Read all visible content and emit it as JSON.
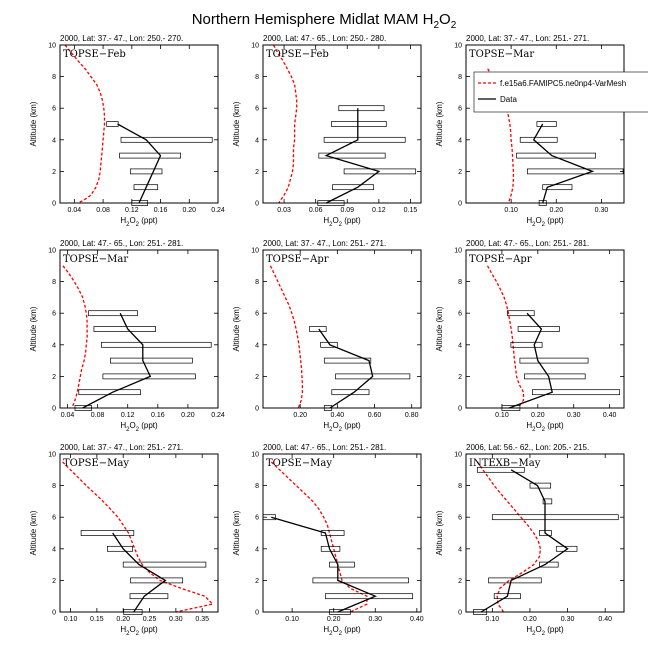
{
  "chart_data": {
    "type": "line",
    "title": "Northern Hemisphere Midlat MAM H2O2",
    "title_main": "Northern Hemisphere Midlat MAM H",
    "title_sub": "2",
    "title_tail": "O",
    "title_sub2": "2",
    "ylabel": "Altitude (km)",
    "xlabel_parts": [
      "H",
      "2",
      "O",
      "2",
      " (ppt)"
    ],
    "legend": {
      "model": "f.e15a6.FAMIPC5.ne0np4-VarMesh",
      "obs": "Data"
    },
    "colors": {
      "model": "#ff0000",
      "obs": "#000000",
      "box": "#000000"
    },
    "panels": [
      {
        "header": "2000, Lat: 37.- 47., Lon: 250.- 270.",
        "tag": "TOPSE−Feb",
        "xlim": [
          0.02,
          0.24
        ],
        "ylim": [
          0,
          10
        ],
        "xticks": [
          0.04,
          0.08,
          0.12,
          0.16,
          0.2,
          0.24
        ],
        "xticklabels": [
          "0.04",
          "0.08",
          "0.12",
          "0.16",
          "0.20",
          "0.24"
        ],
        "yticks": [
          0,
          2,
          4,
          6,
          8,
          10
        ],
        "model_alt": [
          10,
          9.5,
          9,
          8.5,
          8,
          7.5,
          7,
          6.5,
          6,
          5.5,
          5,
          4.5,
          4,
          3.5,
          3,
          2.5,
          2,
          1.5,
          1,
          0.5,
          0.2,
          0
        ],
        "model_x": [
          0.027,
          0.036,
          0.045,
          0.055,
          0.063,
          0.071,
          0.076,
          0.079,
          0.081,
          0.082,
          0.082,
          0.081,
          0.08,
          0.079,
          0.078,
          0.077,
          0.076,
          0.074,
          0.07,
          0.063,
          0.054,
          0.045
        ],
        "obs_alt": [
          5,
          4,
          3,
          2,
          1,
          0
        ],
        "obs_x": [
          0.1,
          0.14,
          0.16,
          0.15,
          0.14,
          0.13
        ],
        "obs_lo": [
          0.085,
          0.105,
          0.103,
          0.118,
          0.123,
          0.12
        ],
        "obs_hi": [
          0.101,
          0.232,
          0.188,
          0.162,
          0.156,
          0.142
        ]
      },
      {
        "header": "2000, Lat: 47.- 65., Lon: 250.- 280.",
        "tag": "TOPSE−Feb",
        "xlim": [
          0.01,
          0.16
        ],
        "ylim": [
          0,
          10
        ],
        "xticks": [
          0.03,
          0.06,
          0.09,
          0.12,
          0.15
        ],
        "xticklabels": [
          "0.03",
          "0.06",
          "0.09",
          "0.12",
          "0.15"
        ],
        "yticks": [
          0,
          2,
          4,
          6,
          8,
          10
        ],
        "model_alt": [
          10,
          9.5,
          9,
          8.5,
          8,
          7.5,
          7,
          6.5,
          6,
          5.5,
          5,
          4.5,
          4,
          3.5,
          3,
          2.5,
          2,
          1.5,
          1,
          0.5,
          0.2,
          0
        ],
        "model_x": [
          0.02,
          0.024,
          0.029,
          0.033,
          0.037,
          0.04,
          0.041,
          0.042,
          0.042,
          0.041,
          0.04,
          0.04,
          0.04,
          0.039,
          0.039,
          0.039,
          0.038,
          0.036,
          0.034,
          0.03,
          0.027,
          0.025
        ],
        "obs_alt": [
          6,
          5,
          4,
          3,
          2,
          1,
          0
        ],
        "obs_x": [
          0.1,
          0.1,
          0.1,
          0.07,
          0.12,
          0.1,
          0.07
        ],
        "obs_lo": [
          0.082,
          0.075,
          0.068,
          0.063,
          0.087,
          0.076,
          0.062
        ],
        "obs_hi": [
          0.125,
          0.127,
          0.145,
          0.126,
          0.155,
          0.115,
          0.087
        ]
      },
      {
        "header": "2000, Lat: 37.- 47., Lon: 251.- 271.",
        "tag": "TOPSE−Mar",
        "xlim": [
          0.0,
          0.35
        ],
        "ylim": [
          0,
          10
        ],
        "xticks": [
          0.1,
          0.2,
          0.3
        ],
        "xticklabels": [
          "0.10",
          "0.20",
          "0.30"
        ],
        "yticks": [
          0,
          2,
          4,
          6,
          8,
          10
        ],
        "model_alt": [
          8.5,
          8,
          7.5,
          7,
          6.5,
          6,
          5.5,
          5,
          4.5,
          4,
          3.5,
          3,
          2.5,
          2,
          1.5,
          1,
          0.5,
          0
        ],
        "model_x": [
          0.048,
          0.058,
          0.068,
          0.076,
          0.083,
          0.09,
          0.094,
          0.097,
          0.099,
          0.1,
          0.102,
          0.103,
          0.104,
          0.105,
          0.105,
          0.104,
          0.1,
          0.094
        ],
        "obs_alt": [
          5,
          4,
          3,
          2,
          1,
          0
        ],
        "obs_x": [
          0.17,
          0.15,
          0.19,
          0.28,
          0.18,
          0.17
        ],
        "obs_lo": [
          0.157,
          0.12,
          0.112,
          0.136,
          0.17,
          0.162
        ],
        "obs_hi": [
          0.2,
          0.202,
          0.287,
          0.348,
          0.235,
          0.178
        ]
      },
      {
        "header": "2000, Lat: 47.- 65., Lon: 251.- 281.",
        "tag": "TOPSE−Mar",
        "xlim": [
          0.03,
          0.24
        ],
        "ylim": [
          0,
          10
        ],
        "xticks": [
          0.04,
          0.08,
          0.12,
          0.16,
          0.2,
          0.24
        ],
        "xticklabels": [
          "0.04",
          "0.08",
          "0.12",
          "0.16",
          "0.20",
          "0.24"
        ],
        "yticks": [
          0,
          2,
          4,
          6,
          8,
          10
        ],
        "model_alt": [
          9,
          8.5,
          8,
          7.5,
          7,
          6.5,
          6,
          5.5,
          5,
          4.5,
          4,
          3.5,
          3,
          2.5,
          2,
          1.5,
          1,
          0.5,
          0
        ],
        "model_x": [
          0.034,
          0.042,
          0.049,
          0.055,
          0.06,
          0.063,
          0.065,
          0.066,
          0.066,
          0.066,
          0.065,
          0.064,
          0.062,
          0.059,
          0.057,
          0.055,
          0.053,
          0.05,
          0.046
        ],
        "obs_alt": [
          6,
          5,
          4,
          3,
          2,
          1,
          0
        ],
        "obs_x": [
          0.11,
          0.12,
          0.14,
          0.14,
          0.15,
          0.1,
          0.06
        ],
        "obs_lo": [
          0.068,
          0.075,
          0.085,
          0.097,
          0.087,
          0.055,
          0.05
        ],
        "obs_hi": [
          0.133,
          0.157,
          0.231,
          0.206,
          0.21,
          0.137,
          0.072
        ]
      },
      {
        "header": "2000, Lat: 37.- 47., Lon: 251.- 271.",
        "tag": "TOPSE−Apr",
        "xlim": [
          0.0,
          0.85
        ],
        "ylim": [
          0,
          10
        ],
        "xticks": [
          0.2,
          0.4,
          0.6,
          0.8
        ],
        "xticklabels": [
          "0.20",
          "0.40",
          "0.60",
          "0.80"
        ],
        "yticks": [
          0,
          2,
          4,
          6,
          8,
          10
        ],
        "model_alt": [
          9,
          8.5,
          8,
          7.5,
          7,
          6.5,
          6,
          5.5,
          5,
          4.5,
          4,
          3.5,
          3,
          2.5,
          2,
          1.5,
          1,
          0.5,
          0
        ],
        "model_x": [
          0.04,
          0.06,
          0.08,
          0.1,
          0.12,
          0.14,
          0.155,
          0.168,
          0.178,
          0.186,
          0.193,
          0.198,
          0.203,
          0.207,
          0.21,
          0.212,
          0.212,
          0.206,
          0.19
        ],
        "obs_alt": [
          5,
          4,
          3,
          2,
          1,
          0
        ],
        "obs_x": [
          0.3,
          0.36,
          0.57,
          0.59,
          0.49,
          0.36
        ],
        "obs_lo": [
          0.25,
          0.31,
          0.33,
          0.39,
          0.37,
          0.33
        ],
        "obs_hi": [
          0.34,
          0.4,
          0.58,
          0.79,
          0.57,
          0.37
        ]
      },
      {
        "header": "2000, Lat: 47.- 65., Lon: 251.- 281.",
        "tag": "TOPSE−Apr",
        "xlim": [
          0.0,
          0.44
        ],
        "ylim": [
          0,
          10
        ],
        "xticks": [
          0.1,
          0.2,
          0.3,
          0.4
        ],
        "xticklabels": [
          "0.10",
          "0.20",
          "0.30",
          "0.40"
        ],
        "yticks": [
          0,
          2,
          4,
          6,
          8,
          10
        ],
        "model_alt": [
          9,
          8.5,
          8,
          7.5,
          7,
          6.5,
          6,
          5.5,
          5,
          4.5,
          4,
          3.5,
          3,
          2.5,
          2,
          1.5,
          1,
          0.5,
          0
        ],
        "model_x": [
          0.06,
          0.072,
          0.085,
          0.096,
          0.106,
          0.113,
          0.118,
          0.122,
          0.126,
          0.129,
          0.131,
          0.133,
          0.135,
          0.138,
          0.141,
          0.148,
          0.16,
          0.16,
          0.145
        ],
        "obs_alt": [
          6,
          5,
          4,
          3,
          2,
          1,
          0
        ],
        "obs_x": [
          0.17,
          0.21,
          0.19,
          0.2,
          0.23,
          0.24,
          0.12
        ],
        "obs_lo": [
          0.115,
          0.145,
          0.125,
          0.15,
          0.163,
          0.185,
          0.1
        ],
        "obs_hi": [
          0.19,
          0.26,
          0.212,
          0.34,
          0.332,
          0.428,
          0.15
        ]
      },
      {
        "header": "2000, Lat: 37.- 47., Lon: 251.- 271.",
        "tag": "TOPSE−May",
        "xlim": [
          0.08,
          0.38
        ],
        "ylim": [
          0,
          10
        ],
        "xticks": [
          0.1,
          0.15,
          0.2,
          0.25,
          0.3,
          0.35
        ],
        "xticklabels": [
          "0.10",
          "0.15",
          "0.20",
          "0.25",
          "0.30",
          "0.35"
        ],
        "yticks": [
          0,
          2,
          4,
          6,
          8,
          10
        ],
        "model_alt": [
          9.5,
          9,
          8.5,
          8,
          7.5,
          7,
          6.5,
          6,
          5.5,
          5,
          4.5,
          4,
          3.5,
          3,
          2.5,
          2,
          1.5,
          1,
          0.5,
          0
        ],
        "model_x": [
          0.085,
          0.1,
          0.115,
          0.13,
          0.146,
          0.162,
          0.176,
          0.19,
          0.2,
          0.21,
          0.216,
          0.222,
          0.228,
          0.236,
          0.25,
          0.27,
          0.31,
          0.355,
          0.37,
          0.3
        ],
        "obs_alt": [
          5,
          4,
          3,
          2,
          1,
          0
        ],
        "obs_x": [
          0.18,
          0.2,
          0.23,
          0.28,
          0.24,
          0.22
        ],
        "obs_lo": [
          0.12,
          0.17,
          0.2,
          0.214,
          0.213,
          0.201
        ],
        "obs_hi": [
          0.22,
          0.218,
          0.357,
          0.313,
          0.285,
          0.236
        ]
      },
      {
        "header": "2000, Lat: 47.- 65., Lon: 251.- 281.",
        "tag": "TOPSE−May",
        "xlim": [
          0.03,
          0.41
        ],
        "ylim": [
          0,
          10
        ],
        "xticks": [
          0.1,
          0.2,
          0.3,
          0.4
        ],
        "xticklabels": [
          "0.10",
          "0.20",
          "0.30",
          "0.40"
        ],
        "yticks": [
          0,
          2,
          4,
          6,
          8,
          10
        ],
        "model_alt": [
          9.5,
          9,
          8.5,
          8,
          7.5,
          7,
          6.5,
          6,
          5.5,
          5,
          4.5,
          4,
          3.5,
          3,
          2.5,
          2,
          1.5,
          1,
          0.5,
          0
        ],
        "model_x": [
          0.05,
          0.07,
          0.09,
          0.11,
          0.13,
          0.15,
          0.165,
          0.176,
          0.185,
          0.19,
          0.195,
          0.2,
          0.205,
          0.21,
          0.215,
          0.22,
          0.24,
          0.28,
          0.28,
          0.24
        ],
        "obs_alt": [
          6,
          5,
          4,
          3,
          2,
          1,
          0
        ],
        "obs_x": [
          0.05,
          0.18,
          0.19,
          0.21,
          0.21,
          0.3,
          0.21
        ],
        "obs_lo": [
          0.03,
          0.17,
          0.17,
          0.19,
          0.15,
          0.18,
          0.19
        ],
        "obs_hi": [
          0.06,
          0.225,
          0.215,
          0.25,
          0.38,
          0.39,
          0.24
        ]
      },
      {
        "header": "2006, Lat: 56.- 62., Lon: 205.- 215.",
        "tag": "INTEXB−May",
        "xlim": [
          0.03,
          0.45
        ],
        "ylim": [
          0,
          10
        ],
        "xticks": [
          0.1,
          0.2,
          0.3,
          0.4
        ],
        "xticklabels": [
          "0.10",
          "0.20",
          "0.30",
          "0.40"
        ],
        "yticks": [
          0,
          2,
          4,
          6,
          8,
          10
        ],
        "model_alt": [
          9.5,
          9,
          8.5,
          8,
          7.5,
          7,
          6.5,
          6,
          5.5,
          5,
          4.5,
          4,
          3.5,
          3,
          2.5,
          2,
          1.5,
          1,
          0.5,
          0
        ],
        "model_x": [
          0.06,
          0.075,
          0.09,
          0.105,
          0.122,
          0.14,
          0.158,
          0.176,
          0.194,
          0.21,
          0.222,
          0.228,
          0.225,
          0.21,
          0.18,
          0.145,
          0.12,
          0.113,
          0.115,
          0.13
        ],
        "obs_alt": [
          9,
          8,
          7,
          6,
          5,
          4,
          3,
          2,
          1,
          0
        ],
        "obs_x": [
          0.15,
          0.22,
          0.24,
          0.24,
          0.24,
          0.3,
          0.24,
          0.15,
          0.14,
          0.07
        ],
        "obs_lo": [
          0.06,
          0.2,
          0.235,
          0.1,
          0.225,
          0.27,
          0.225,
          0.09,
          0.105,
          0.05
        ],
        "obs_hi": [
          0.185,
          0.255,
          0.258,
          0.435,
          0.257,
          0.325,
          0.275,
          0.23,
          0.175,
          0.085
        ]
      }
    ]
  }
}
